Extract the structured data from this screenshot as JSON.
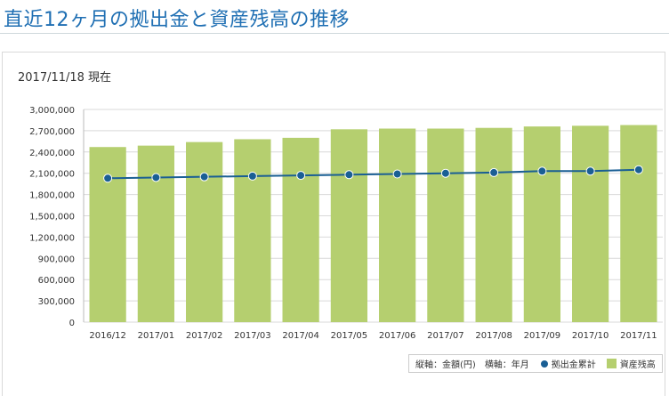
{
  "page": {
    "title": "直近12ヶ月の拠出金と資産残高の推移",
    "as_of": "2017/11/18 現在"
  },
  "legend": {
    "vertical_axis_note": "縦軸：金額(円)",
    "horizontal_axis_note": "横軸：年月",
    "contribution_label": "拠出金累計",
    "balance_label": "資産残高"
  },
  "colors": {
    "title": "#1f6fb3",
    "bar": "#b5cf6f",
    "line": "#1a5f94",
    "grid": "#d9d9d9"
  },
  "chart_data": {
    "type": "bar",
    "categories": [
      "2016/12",
      "2017/01",
      "2017/02",
      "2017/03",
      "2017/04",
      "2017/05",
      "2017/06",
      "2017/07",
      "2017/08",
      "2017/09",
      "2017/10",
      "2017/11"
    ],
    "series": [
      {
        "name": "資産残高",
        "type": "bar",
        "values": [
          2470000,
          2490000,
          2540000,
          2580000,
          2600000,
          2720000,
          2730000,
          2730000,
          2740000,
          2760000,
          2770000,
          2780000
        ]
      },
      {
        "name": "拠出金累計",
        "type": "line",
        "values": [
          2030000,
          2040000,
          2050000,
          2060000,
          2070000,
          2080000,
          2090000,
          2100000,
          2110000,
          2130000,
          2130000,
          2150000
        ]
      }
    ],
    "yticks": [
      "0",
      "300,000",
      "600,000",
      "900,000",
      "1,200,000",
      "1,500,000",
      "1,800,000",
      "2,100,000",
      "2,400,000",
      "2,700,000",
      "3,000,000"
    ],
    "ylim": [
      0,
      3000000
    ],
    "grid": true,
    "legend_position": "bottom-right"
  }
}
